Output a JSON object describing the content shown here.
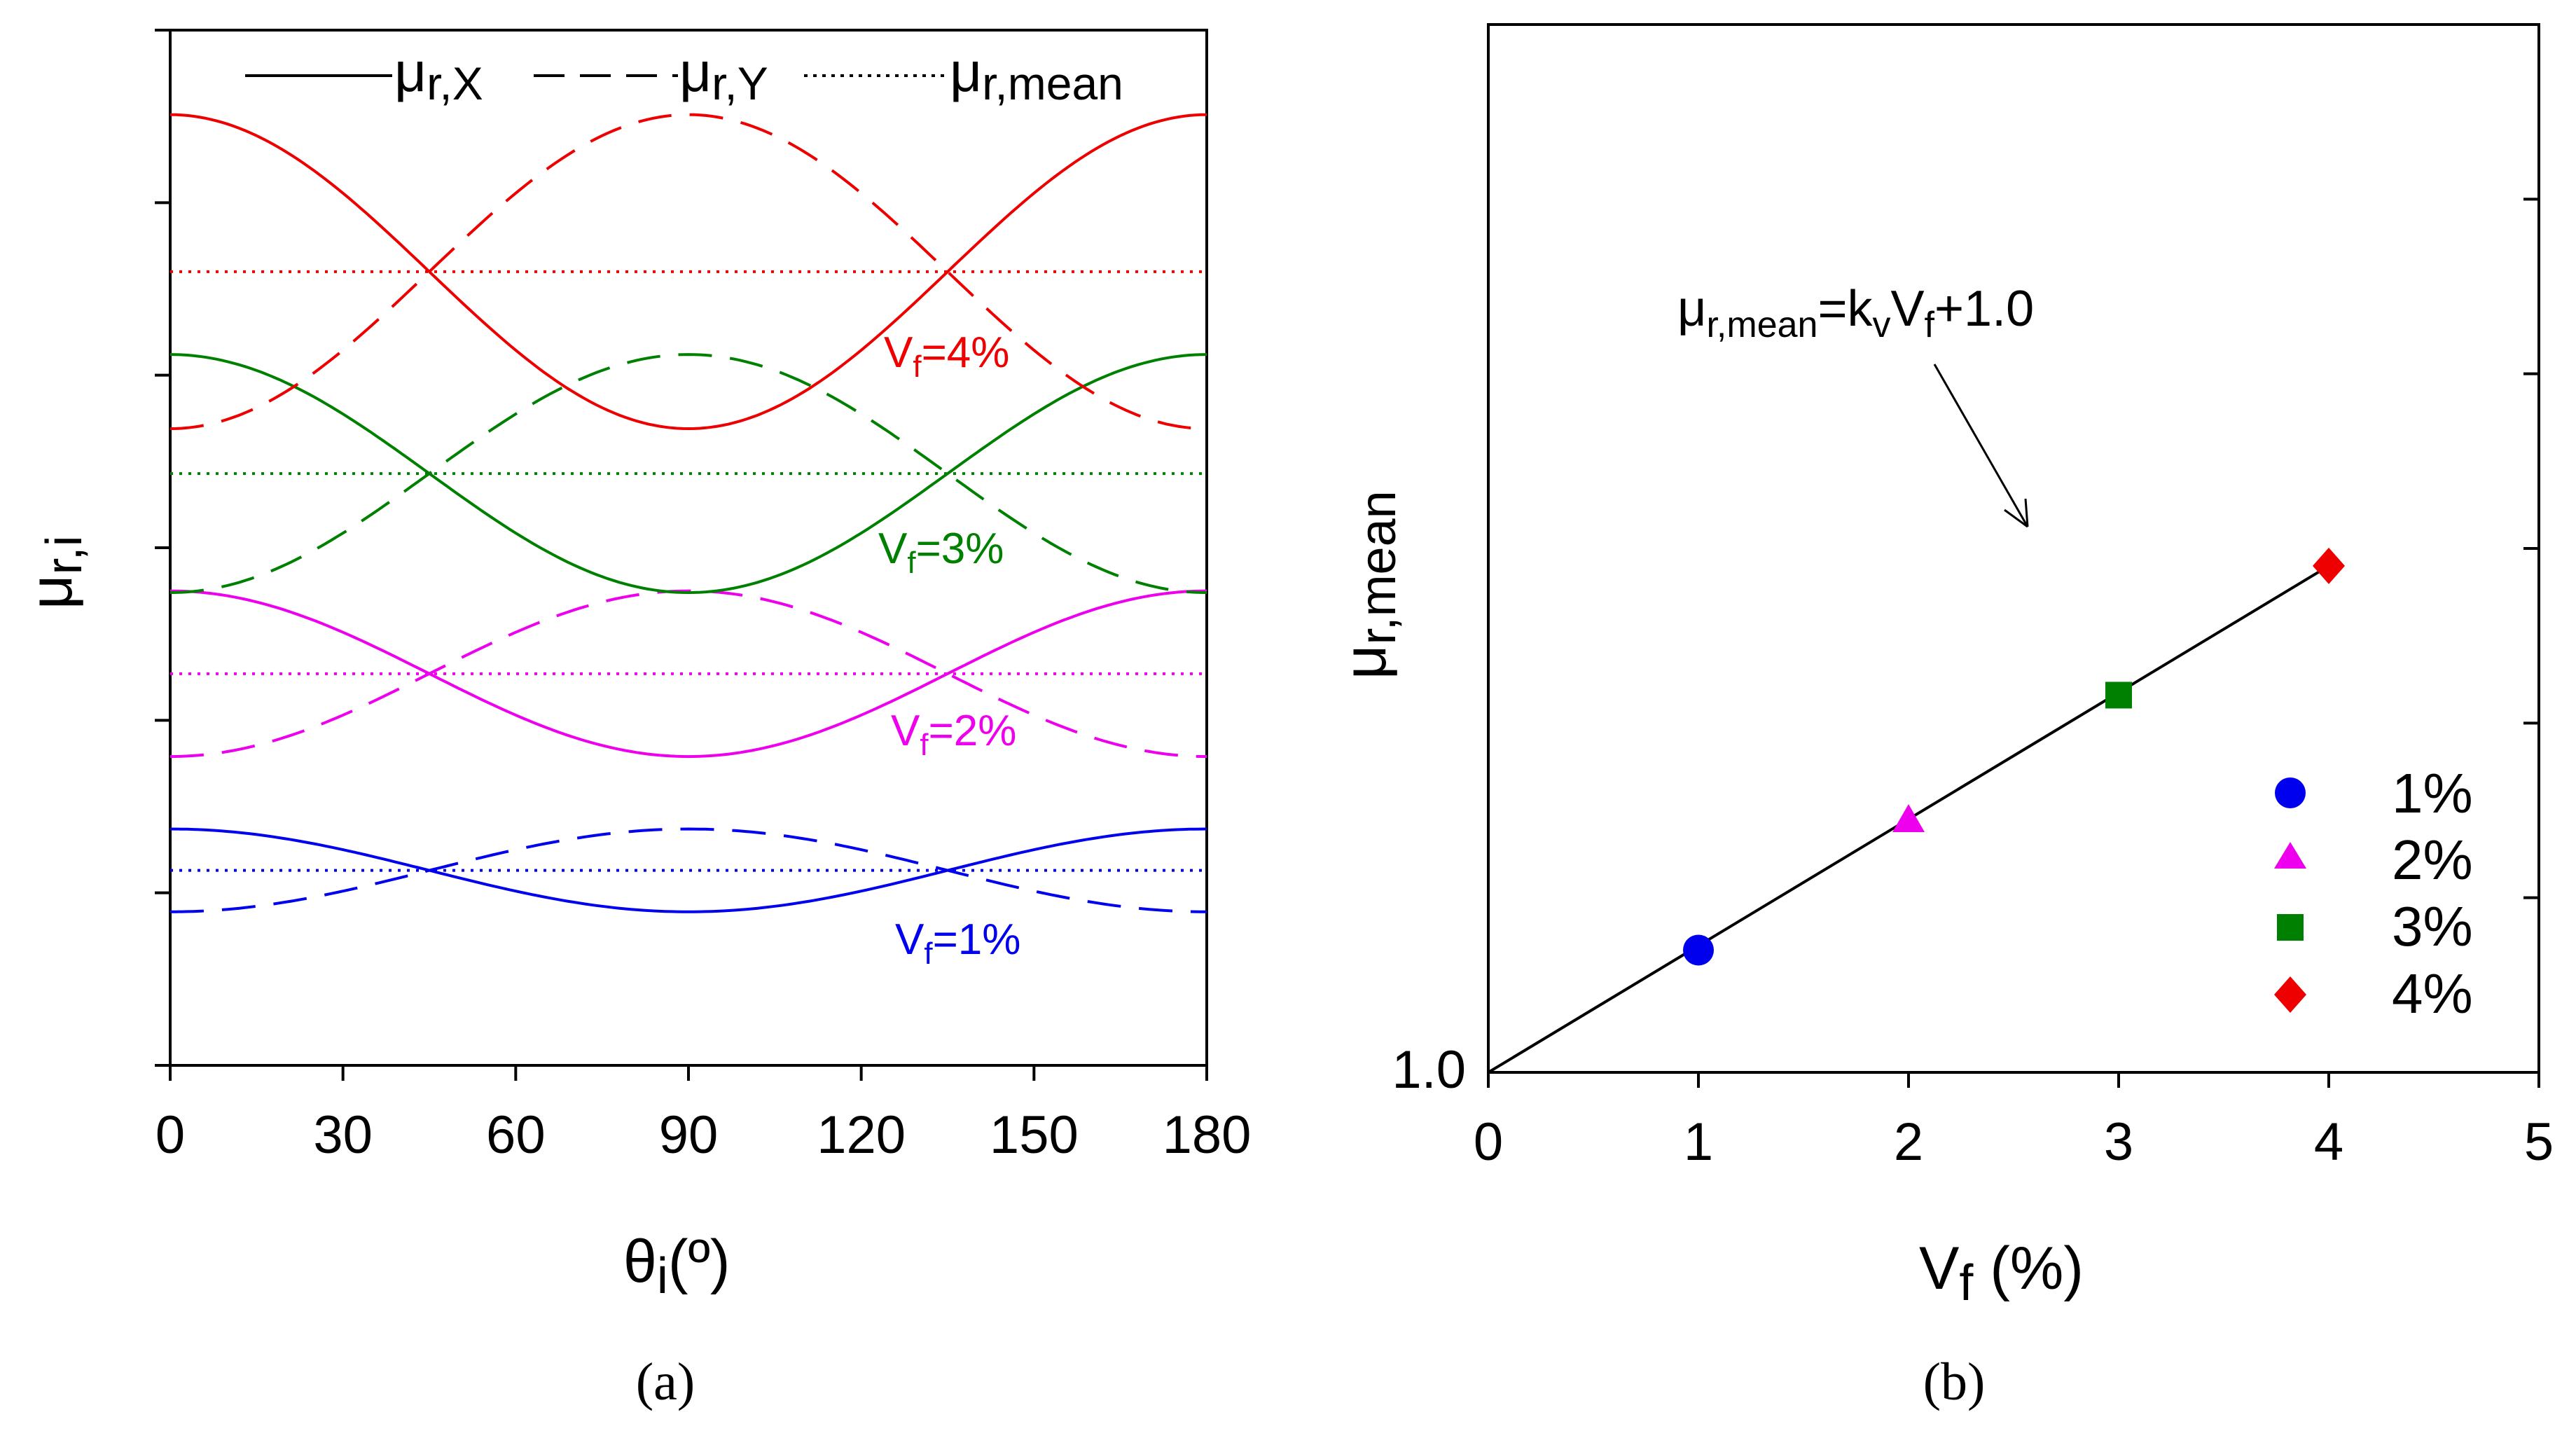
{
  "colors": {
    "vf1": "#0000ee",
    "vf2": "#ee00ee",
    "vf3": "#008000",
    "vf4": "#ee0000",
    "axis": "#000000"
  },
  "panel_a": {
    "label": "(a)",
    "y_label_main": "μ",
    "y_label_sub": "r,i",
    "x_label_main": "θ",
    "x_label_sub": "i",
    "x_label_rest": "(º)",
    "legend": {
      "x_main": "μ",
      "x_sub": "r,X",
      "y_main": "μ",
      "y_sub": "r,Y",
      "mean_main": "μ",
      "mean_sub": "r,mean"
    },
    "curve_labels": [
      {
        "main": "V",
        "sub": "f",
        "rest": "=1%"
      },
      {
        "main": "V",
        "sub": "f",
        "rest": "=2%"
      },
      {
        "main": "V",
        "sub": "f",
        "rest": "=3%"
      },
      {
        "main": "V",
        "sub": "f",
        "rest": "=4%"
      }
    ]
  },
  "panel_b": {
    "label": "(b)",
    "y_label_main": "μ",
    "y_label_sub": "r,mean",
    "x_label_main": "V",
    "x_label_sub": "f",
    "x_label_rest": " (%)",
    "y_tick_label": "1.0",
    "equation": {
      "p1": "μ",
      "s1": "r,mean",
      "p2": "=k",
      "s2": "v",
      "p3": "V",
      "s3": "f",
      "p4": "+1.0"
    },
    "legend": [
      {
        "label": "1%",
        "marker": "circle"
      },
      {
        "label": "2%",
        "marker": "triangle"
      },
      {
        "label": "3%",
        "marker": "square"
      },
      {
        "label": "4%",
        "marker": "diamond"
      }
    ]
  },
  "chart_data": [
    {
      "type": "line",
      "x": [
        0,
        30,
        60,
        90,
        120,
        150,
        180
      ],
      "xlim": [
        0,
        180
      ],
      "ylim": [
        0,
        6
      ],
      "x_ticks": [
        "0",
        "30",
        "60",
        "90",
        "120",
        "150",
        "180"
      ],
      "y_tick_labels_shown": false,
      "series": [
        {
          "vf": "V_f=1%",
          "x_dir": "μr,X",
          "mean": 1.13,
          "amplitude": 0.24,
          "color": "#0000ee"
        },
        {
          "vf": "V_f=2%",
          "x_dir": "μr,X",
          "mean": 2.27,
          "amplitude": 0.48,
          "color": "#ee00ee"
        },
        {
          "vf": "V_f=3%",
          "x_dir": "μr,X",
          "mean": 3.43,
          "amplitude": 0.69,
          "color": "#008000"
        },
        {
          "vf": "V_f=4%",
          "x_dir": "μr,X",
          "mean": 4.6,
          "amplitude": 0.91,
          "color": "#ee0000"
        }
      ],
      "model": "μr,X = mean + amplitude·cos(2θ); μr,Y = mean − amplitude·cos(2θ); μr,mean constant"
    },
    {
      "type": "scatter",
      "xlim": [
        0,
        5
      ],
      "ylim": [
        1.0,
        4.0
      ],
      "x_ticks": [
        "0",
        "1",
        "2",
        "3",
        "4",
        "5"
      ],
      "points": [
        {
          "x": 1,
          "y": 1.35,
          "label": "1%",
          "color": "#0000ee"
        },
        {
          "x": 2,
          "y": 1.72,
          "label": "2%",
          "color": "#ee00ee"
        },
        {
          "x": 3,
          "y": 2.08,
          "label": "3%",
          "color": "#008000"
        },
        {
          "x": 4,
          "y": 2.45,
          "label": "4%",
          "color": "#ee0000"
        }
      ],
      "fit_line": {
        "x0": 0,
        "y0": 1.0,
        "x1": 4,
        "y1": 2.45
      }
    }
  ]
}
